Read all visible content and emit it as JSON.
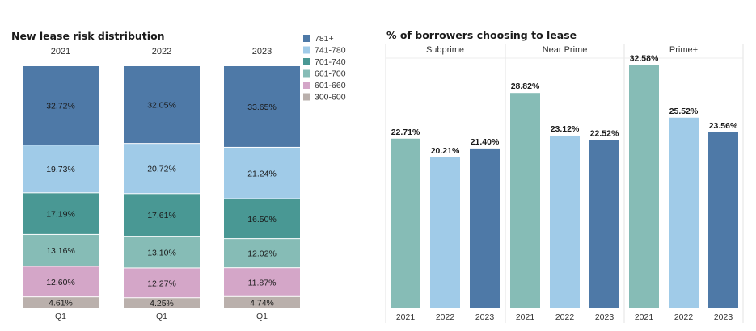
{
  "chart_data": [
    {
      "type": "bar",
      "stacked": true,
      "title": "New lease risk distribution",
      "columns": [
        "2021",
        "2022",
        "2023"
      ],
      "categories": [
        "Q1",
        "Q1",
        "Q1"
      ],
      "legend_position": "right",
      "series": [
        {
          "name": "781+",
          "color": "#4e79a7",
          "values": [
            32.72,
            32.05,
            33.65
          ],
          "labels": [
            "32.72%",
            "32.05%",
            "33.65%"
          ]
        },
        {
          "name": "741-780",
          "color": "#a0cbe8",
          "values": [
            19.73,
            20.72,
            21.24
          ],
          "labels": [
            "19.73%",
            "20.72%",
            "21.24%"
          ]
        },
        {
          "name": "701-740",
          "color": "#499894",
          "values": [
            17.19,
            17.61,
            16.5
          ],
          "labels": [
            "17.19%",
            "17.61%",
            "16.50%"
          ]
        },
        {
          "name": "661-700",
          "color": "#86bcb6",
          "values": [
            13.16,
            13.1,
            12.02
          ],
          "labels": [
            "13.16%",
            "13.10%",
            "12.02%"
          ]
        },
        {
          "name": "601-660",
          "color": "#d4a6c8",
          "values": [
            12.6,
            12.27,
            11.87
          ],
          "labels": [
            "12.60%",
            "12.27%",
            "11.87%"
          ]
        },
        {
          "name": "300-600",
          "color": "#bab0ac",
          "values": [
            4.61,
            4.25,
            4.74
          ],
          "labels": [
            "4.61%",
            "4.25%",
            "4.74%"
          ]
        }
      ]
    },
    {
      "type": "bar",
      "title": "% of borrowers choosing to lease",
      "ylim": [
        0,
        35
      ],
      "groups": [
        {
          "name": "Subprime",
          "categories": [
            "2021",
            "2022",
            "2023"
          ],
          "values": [
            22.71,
            20.21,
            21.4
          ],
          "labels": [
            "22.71%",
            "20.21%",
            "21.40%"
          ]
        },
        {
          "name": "Near Prime",
          "categories": [
            "2021",
            "2022",
            "2023"
          ],
          "values": [
            28.82,
            23.12,
            22.52
          ],
          "labels": [
            "28.82%",
            "23.12%",
            "22.52%"
          ]
        },
        {
          "name": "Prime+",
          "categories": [
            "2021",
            "2022",
            "2023"
          ],
          "values": [
            32.58,
            25.52,
            23.56
          ],
          "labels": [
            "32.58%",
            "25.52%",
            "23.56%"
          ]
        }
      ],
      "year_colors": [
        "#86bcb6",
        "#a0cbe8",
        "#4e79a7"
      ]
    }
  ]
}
